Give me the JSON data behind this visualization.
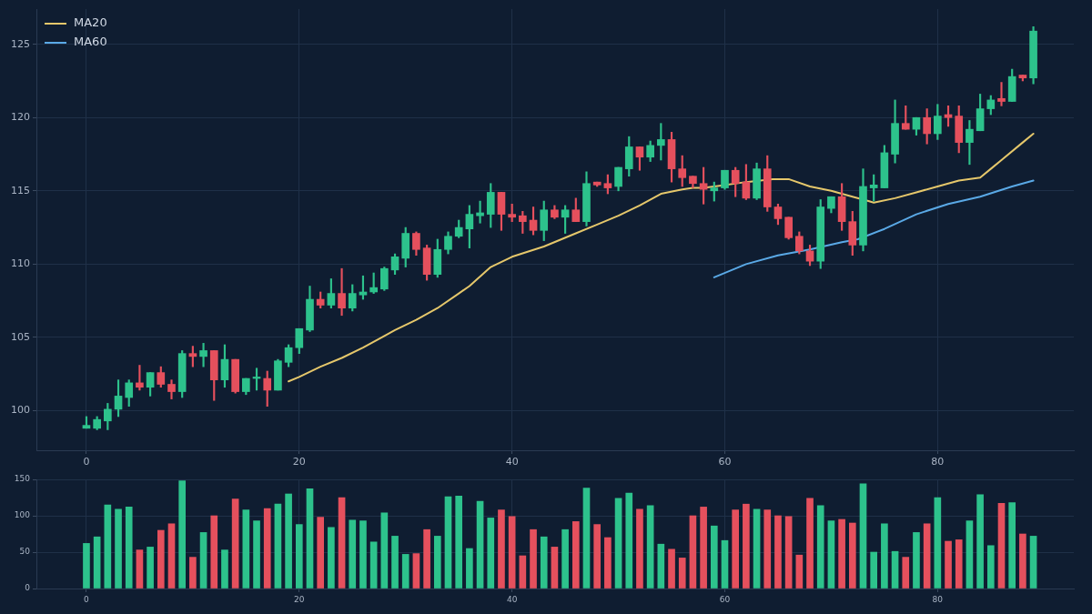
{
  "chart_data": [
    {
      "type": "candlestick",
      "x": [
        0,
        1,
        2,
        3,
        4,
        5,
        6,
        7,
        8,
        9,
        10,
        11,
        12,
        13,
        14,
        15,
        16,
        17,
        18,
        19,
        20,
        21,
        22,
        23,
        24,
        25,
        26,
        27,
        28,
        29,
        30,
        31,
        32,
        33,
        34,
        35,
        36,
        37,
        38,
        39,
        40,
        41,
        42,
        43,
        44,
        45,
        46,
        47,
        48,
        49,
        50,
        51,
        52,
        53,
        54,
        55,
        56,
        57,
        58,
        59,
        60,
        61,
        62,
        63,
        64,
        65,
        66,
        67,
        68,
        69,
        70,
        71,
        72,
        73,
        74,
        75,
        76,
        77,
        78,
        79,
        80,
        81,
        82,
        83,
        84,
        85,
        86,
        87,
        88,
        89
      ],
      "ohlc": [
        [
          98.8,
          99.6,
          98.8,
          99.0
        ],
        [
          98.8,
          99.6,
          98.7,
          99.4
        ],
        [
          99.3,
          100.5,
          98.7,
          100.1
        ],
        [
          100.1,
          102.1,
          99.6,
          101.0
        ],
        [
          100.9,
          102.1,
          100.3,
          101.9
        ],
        [
          101.9,
          103.1,
          101.4,
          101.6
        ],
        [
          101.6,
          102.6,
          101.0,
          102.6
        ],
        [
          102.6,
          103.0,
          101.6,
          101.8
        ],
        [
          101.8,
          102.1,
          100.8,
          101.3
        ],
        [
          101.3,
          104.1,
          100.9,
          103.9
        ],
        [
          103.9,
          104.4,
          103.0,
          103.7
        ],
        [
          103.7,
          104.6,
          103.0,
          104.1
        ],
        [
          104.1,
          104.1,
          100.7,
          102.1
        ],
        [
          102.1,
          104.5,
          101.6,
          103.5
        ],
        [
          103.5,
          103.5,
          101.2,
          101.3
        ],
        [
          101.3,
          102.2,
          101.1,
          102.2
        ],
        [
          102.2,
          102.9,
          101.4,
          102.3
        ],
        [
          102.2,
          102.7,
          100.3,
          101.4
        ],
        [
          101.4,
          103.5,
          101.4,
          103.4
        ],
        [
          103.3,
          104.5,
          103.0,
          104.3
        ],
        [
          104.3,
          105.6,
          103.9,
          105.6
        ],
        [
          105.5,
          108.5,
          105.4,
          107.6
        ],
        [
          107.6,
          108.1,
          107.0,
          107.2
        ],
        [
          107.2,
          109.0,
          107.0,
          108.0
        ],
        [
          108.0,
          109.7,
          106.5,
          107.0
        ],
        [
          107.0,
          108.6,
          106.8,
          108.0
        ],
        [
          107.9,
          109.2,
          107.6,
          108.1
        ],
        [
          108.1,
          109.4,
          108.0,
          108.4
        ],
        [
          108.3,
          109.8,
          108.2,
          109.7
        ],
        [
          109.6,
          110.7,
          109.3,
          110.5
        ],
        [
          110.4,
          112.5,
          109.8,
          112.1
        ],
        [
          112.1,
          112.2,
          110.6,
          111.0
        ],
        [
          111.1,
          111.3,
          108.9,
          109.3
        ],
        [
          109.3,
          111.7,
          109.1,
          111.0
        ],
        [
          111.0,
          112.2,
          110.7,
          111.9
        ],
        [
          111.9,
          113.0,
          111.8,
          112.5
        ],
        [
          112.4,
          114.0,
          111.1,
          113.4
        ],
        [
          113.3,
          114.3,
          112.8,
          113.5
        ],
        [
          113.4,
          115.5,
          112.5,
          114.9
        ],
        [
          114.9,
          114.9,
          112.3,
          113.4
        ],
        [
          113.4,
          114.1,
          112.9,
          113.2
        ],
        [
          113.3,
          113.6,
          112.1,
          112.9
        ],
        [
          113.0,
          113.9,
          112.0,
          112.3
        ],
        [
          112.3,
          114.3,
          111.6,
          113.7
        ],
        [
          113.7,
          114.0,
          113.1,
          113.2
        ],
        [
          113.2,
          114.0,
          112.1,
          113.7
        ],
        [
          113.7,
          114.5,
          112.9,
          112.9
        ],
        [
          112.9,
          116.3,
          112.6,
          115.5
        ],
        [
          115.6,
          115.6,
          115.3,
          115.4
        ],
        [
          115.5,
          116.1,
          114.8,
          115.2
        ],
        [
          115.3,
          116.6,
          115.0,
          116.6
        ],
        [
          116.5,
          118.7,
          116.0,
          118.0
        ],
        [
          118.0,
          118.0,
          116.4,
          117.3
        ],
        [
          117.3,
          118.4,
          117.0,
          118.1
        ],
        [
          118.1,
          119.6,
          117.1,
          118.5
        ],
        [
          118.5,
          119.0,
          115.6,
          116.5
        ],
        [
          116.5,
          117.4,
          115.3,
          115.9
        ],
        [
          116.0,
          116.0,
          115.2,
          115.5
        ],
        [
          115.5,
          116.6,
          114.1,
          115.1
        ],
        [
          115.0,
          115.6,
          114.3,
          115.2
        ],
        [
          115.2,
          116.4,
          115.1,
          116.4
        ],
        [
          116.4,
          116.6,
          114.6,
          115.5
        ],
        [
          115.6,
          116.8,
          114.4,
          114.5
        ],
        [
          114.5,
          116.9,
          114.4,
          116.5
        ],
        [
          116.5,
          117.4,
          113.6,
          113.9
        ],
        [
          113.9,
          114.1,
          112.7,
          113.1
        ],
        [
          113.2,
          113.2,
          111.7,
          111.8
        ],
        [
          111.9,
          112.2,
          110.7,
          110.9
        ],
        [
          110.9,
          111.3,
          109.9,
          110.2
        ],
        [
          110.2,
          114.4,
          109.7,
          113.9
        ],
        [
          113.8,
          114.6,
          113.5,
          114.6
        ],
        [
          114.6,
          115.5,
          112.3,
          112.9
        ],
        [
          112.9,
          113.6,
          110.6,
          111.3
        ],
        [
          111.3,
          116.5,
          110.9,
          115.3
        ],
        [
          115.2,
          116.1,
          114.3,
          115.4
        ],
        [
          115.2,
          118.1,
          115.2,
          117.6
        ],
        [
          117.5,
          121.2,
          116.9,
          119.6
        ],
        [
          119.6,
          120.8,
          119.2,
          119.2
        ],
        [
          119.2,
          120.0,
          118.8,
          120.0
        ],
        [
          120.0,
          120.6,
          118.2,
          118.9
        ],
        [
          118.9,
          120.9,
          118.5,
          120.1
        ],
        [
          120.2,
          120.8,
          119.4,
          120.0
        ],
        [
          120.1,
          120.8,
          117.6,
          118.3
        ],
        [
          118.3,
          119.8,
          116.8,
          119.2
        ],
        [
          119.1,
          121.6,
          119.1,
          120.6
        ],
        [
          120.6,
          121.5,
          120.2,
          121.2
        ],
        [
          121.3,
          122.4,
          120.8,
          121.1
        ],
        [
          121.1,
          123.3,
          121.1,
          122.8
        ],
        [
          122.9,
          122.9,
          122.5,
          122.7
        ],
        [
          122.7,
          126.2,
          122.3,
          125.9
        ]
      ],
      "colors": [
        "#2dc28c",
        "#2dc28c",
        "#2dc28c",
        "#2dc28c",
        "#2dc28c",
        "#e5505d",
        "#2dc28c",
        "#e5505d",
        "#e5505d",
        "#2dc28c",
        "#e5505d",
        "#2dc28c",
        "#e5505d",
        "#2dc28c",
        "#e5505d",
        "#2dc28c",
        "#2dc28c",
        "#e5505d",
        "#2dc28c",
        "#2dc28c",
        "#2dc28c",
        "#2dc28c",
        "#e5505d",
        "#2dc28c",
        "#e5505d",
        "#2dc28c",
        "#2dc28c",
        "#2dc28c",
        "#2dc28c",
        "#2dc28c",
        "#2dc28c",
        "#e5505d",
        "#e5505d",
        "#2dc28c",
        "#2dc28c",
        "#2dc28c",
        "#2dc28c",
        "#2dc28c",
        "#2dc28c",
        "#e5505d",
        "#e5505d",
        "#e5505d",
        "#e5505d",
        "#2dc28c",
        "#e5505d",
        "#2dc28c",
        "#e5505d",
        "#2dc28c",
        "#e5505d",
        "#e5505d",
        "#2dc28c",
        "#2dc28c",
        "#e5505d",
        "#2dc28c",
        "#2dc28c",
        "#e5505d",
        "#e5505d",
        "#e5505d",
        "#e5505d",
        "#2dc28c",
        "#2dc28c",
        "#e5505d",
        "#e5505d",
        "#2dc28c",
        "#e5505d",
        "#e5505d",
        "#e5505d",
        "#e5505d",
        "#e5505d",
        "#2dc28c",
        "#2dc28c",
        "#e5505d",
        "#e5505d",
        "#2dc28c",
        "#2dc28c",
        "#2dc28c",
        "#2dc28c",
        "#e5505d",
        "#2dc28c",
        "#e5505d",
        "#2dc28c",
        "#e5505d",
        "#e5505d",
        "#2dc28c",
        "#2dc28c",
        "#2dc28c",
        "#e5505d",
        "#2dc28c",
        "#e5505d",
        "#2dc28c"
      ],
      "series": [
        {
          "type": "line",
          "name": "MA20",
          "color": "#e5c76b",
          "x": [
            19,
            20,
            22,
            24,
            26,
            28,
            29,
            31,
            33,
            35,
            36,
            38,
            40,
            43,
            46,
            48,
            50,
            52,
            54,
            56,
            57,
            58,
            59.5,
            62,
            64.5,
            66,
            68,
            70,
            72,
            73.5,
            74,
            76,
            78,
            80,
            82,
            84,
            85,
            86,
            88,
            89
          ],
          "values": [
            102.0,
            102.3,
            103.0,
            103.6,
            104.3,
            105.1,
            105.5,
            106.2,
            107.0,
            108.0,
            108.5,
            109.8,
            110.5,
            111.2,
            112.1,
            112.7,
            113.3,
            114.0,
            114.8,
            115.1,
            115.2,
            115.2,
            115.35,
            115.6,
            115.8,
            115.8,
            115.3,
            115.0,
            114.6,
            114.3,
            114.2,
            114.5,
            114.9,
            115.3,
            115.7,
            115.9,
            116.5,
            117.1,
            118.3,
            118.9
          ]
        },
        {
          "type": "line",
          "name": "MA60",
          "color": "#5aa9e6",
          "x": [
            59,
            62,
            65,
            68,
            71,
            72.5,
            75,
            78,
            81,
            84,
            87,
            89
          ],
          "values": [
            109.1,
            110.0,
            110.6,
            111.0,
            111.5,
            111.7,
            112.4,
            113.4,
            114.1,
            114.6,
            115.3,
            115.7
          ]
        }
      ],
      "xlim": [
        -4.7,
        92.8
      ],
      "xticks": [
        0,
        20,
        40,
        60,
        80
      ],
      "ylim": [
        97.3,
        127.4
      ],
      "yticks": [
        100,
        105,
        110,
        115,
        120,
        125
      ],
      "grid": true,
      "legend": "top left"
    },
    {
      "type": "bar",
      "x": [
        0,
        1,
        2,
        3,
        4,
        5,
        6,
        7,
        8,
        9,
        10,
        11,
        12,
        13,
        14,
        15,
        16,
        17,
        18,
        19,
        20,
        21,
        22,
        23,
        24,
        25,
        26,
        27,
        28,
        29,
        30,
        31,
        32,
        33,
        34,
        35,
        36,
        37,
        38,
        39,
        40,
        41,
        42,
        43,
        44,
        45,
        46,
        47,
        48,
        49,
        50,
        51,
        52,
        53,
        54,
        55,
        56,
        57,
        58,
        59,
        60,
        61,
        62,
        63,
        64,
        65,
        66,
        67,
        68,
        69,
        70,
        71,
        72,
        73,
        74,
        75,
        76,
        77,
        78,
        79,
        80,
        81,
        82,
        83,
        84,
        85,
        86,
        87,
        88,
        89
      ],
      "values": [
        62,
        71,
        115,
        109,
        112,
        53,
        57,
        80,
        89,
        148,
        43,
        77,
        100,
        53,
        123,
        108,
        93,
        110,
        116,
        130,
        88,
        137,
        98,
        84,
        125,
        94,
        93,
        64,
        104,
        72,
        47,
        48,
        81,
        72,
        126,
        127,
        55,
        120,
        97,
        108,
        99,
        45,
        81,
        71,
        57,
        81,
        92,
        138,
        88,
        70,
        124,
        131,
        109,
        114,
        61,
        54,
        42,
        100,
        112,
        86,
        66,
        108,
        116,
        109,
        108,
        100,
        99,
        46,
        124,
        114,
        93,
        95,
        90,
        144,
        50,
        89,
        51,
        43,
        77,
        89,
        125,
        65,
        67,
        93,
        129,
        59,
        117,
        118,
        75,
        72
      ],
      "colors": [
        "#2dc28c",
        "#2dc28c",
        "#2dc28c",
        "#2dc28c",
        "#2dc28c",
        "#e5505d",
        "#2dc28c",
        "#e5505d",
        "#e5505d",
        "#2dc28c",
        "#e5505d",
        "#2dc28c",
        "#e5505d",
        "#2dc28c",
        "#e5505d",
        "#2dc28c",
        "#2dc28c",
        "#e5505d",
        "#2dc28c",
        "#2dc28c",
        "#2dc28c",
        "#2dc28c",
        "#e5505d",
        "#2dc28c",
        "#e5505d",
        "#2dc28c",
        "#2dc28c",
        "#2dc28c",
        "#2dc28c",
        "#2dc28c",
        "#2dc28c",
        "#e5505d",
        "#e5505d",
        "#2dc28c",
        "#2dc28c",
        "#2dc28c",
        "#2dc28c",
        "#2dc28c",
        "#2dc28c",
        "#e5505d",
        "#e5505d",
        "#e5505d",
        "#e5505d",
        "#2dc28c",
        "#e5505d",
        "#2dc28c",
        "#e5505d",
        "#2dc28c",
        "#e5505d",
        "#e5505d",
        "#2dc28c",
        "#2dc28c",
        "#e5505d",
        "#2dc28c",
        "#2dc28c",
        "#e5505d",
        "#e5505d",
        "#e5505d",
        "#e5505d",
        "#2dc28c",
        "#2dc28c",
        "#e5505d",
        "#e5505d",
        "#2dc28c",
        "#e5505d",
        "#e5505d",
        "#e5505d",
        "#e5505d",
        "#e5505d",
        "#2dc28c",
        "#2dc28c",
        "#e5505d",
        "#e5505d",
        "#2dc28c",
        "#2dc28c",
        "#2dc28c",
        "#2dc28c",
        "#e5505d",
        "#2dc28c",
        "#e5505d",
        "#2dc28c",
        "#e5505d",
        "#e5505d",
        "#2dc28c",
        "#2dc28c",
        "#2dc28c",
        "#e5505d",
        "#2dc28c",
        "#e5505d",
        "#2dc28c"
      ],
      "xlim": [
        -4.7,
        92.8
      ],
      "xticks": [
        0,
        20,
        40,
        60,
        80
      ],
      "ylim": [
        0,
        150
      ],
      "yticks": [
        0,
        50,
        100,
        150
      ],
      "grid": true
    }
  ]
}
